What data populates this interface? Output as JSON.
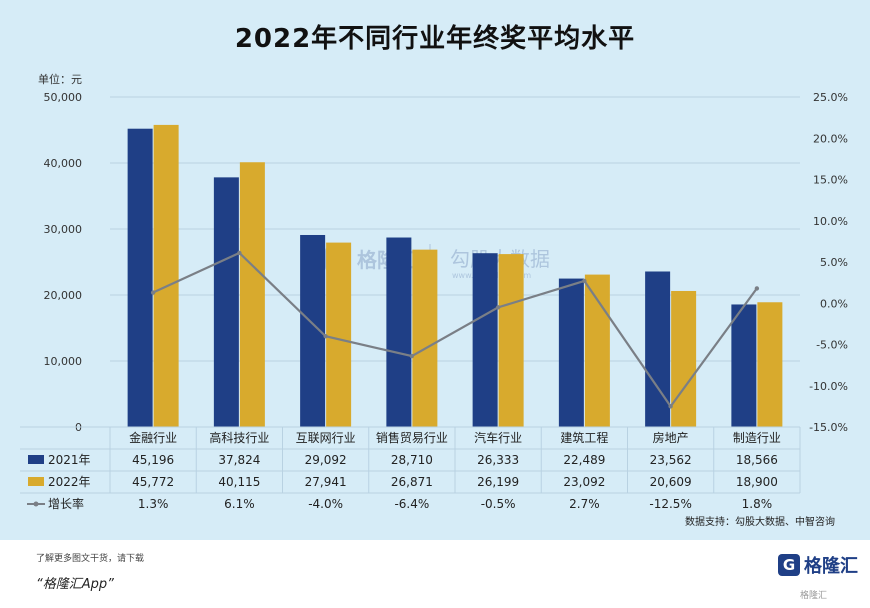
{
  "title": "2022年不同行业年终奖平均水平",
  "unit_label": "单位：元",
  "source": "数据支持：勾股大数据、中智咨询",
  "watermark": {
    "brand": "格隆汇",
    "brand2": "勾股大数据",
    "url": "www.gogudata.com"
  },
  "footer": {
    "note": "了解更多图文干货，请下载",
    "app": "“格隆汇App”",
    "logo_char": "G",
    "logo_text": "格隆汇",
    "badge": "格隆汇"
  },
  "colors": {
    "series2021": "#1f3f86",
    "series2022": "#d8aa2d",
    "growth": "#7a7f86",
    "background": "#d6ecf7"
  },
  "chart_data": {
    "type": "bar",
    "categories": [
      "金融行业",
      "高科技行业",
      "互联网行业",
      "销售贸易行业",
      "汽车行业",
      "建筑工程",
      "房地产",
      "制造行业"
    ],
    "series": [
      {
        "name": "2021年",
        "type": "bar",
        "axis": "left",
        "values": [
          45196,
          37824,
          29092,
          28710,
          26333,
          22489,
          23562,
          18566
        ]
      },
      {
        "name": "2022年",
        "type": "bar",
        "axis": "left",
        "values": [
          45772,
          40115,
          27941,
          26871,
          26199,
          23092,
          20609,
          18900
        ]
      },
      {
        "name": "增长率",
        "type": "line",
        "axis": "right",
        "values": [
          1.3,
          6.1,
          -4.0,
          -6.4,
          -0.5,
          2.7,
          -12.5,
          1.8
        ]
      }
    ],
    "table_rows": [
      {
        "label": "2021年",
        "cells": [
          "45,196",
          "37,824",
          "29,092",
          "28,710",
          "26,333",
          "22,489",
          "23,562",
          "18,566"
        ]
      },
      {
        "label": "2022年",
        "cells": [
          "45,772",
          "40,115",
          "27,941",
          "26,871",
          "26,199",
          "23,092",
          "20,609",
          "18,900"
        ]
      },
      {
        "label": "增长率",
        "cells": [
          "1.3%",
          "6.1%",
          "-4.0%",
          "-6.4%",
          "-0.5%",
          "2.7%",
          "-12.5%",
          "1.8%"
        ]
      }
    ],
    "y_left": {
      "min": 0,
      "max": 50000,
      "ticks": [
        "0",
        "10,000",
        "20,000",
        "30,000",
        "40,000",
        "50,000"
      ],
      "tick_values": [
        0,
        10000,
        20000,
        30000,
        40000,
        50000
      ]
    },
    "y_right": {
      "min": -15,
      "max": 25,
      "ticks": [
        "-15.0%",
        "-10.0%",
        "-5.0%",
        "0.0%",
        "5.0%",
        "10.0%",
        "15.0%",
        "20.0%",
        "25.0%"
      ],
      "tick_values": [
        -15,
        -10,
        -5,
        0,
        5,
        10,
        15,
        20,
        25
      ]
    },
    "grid": true,
    "legend": "table-bottom"
  }
}
